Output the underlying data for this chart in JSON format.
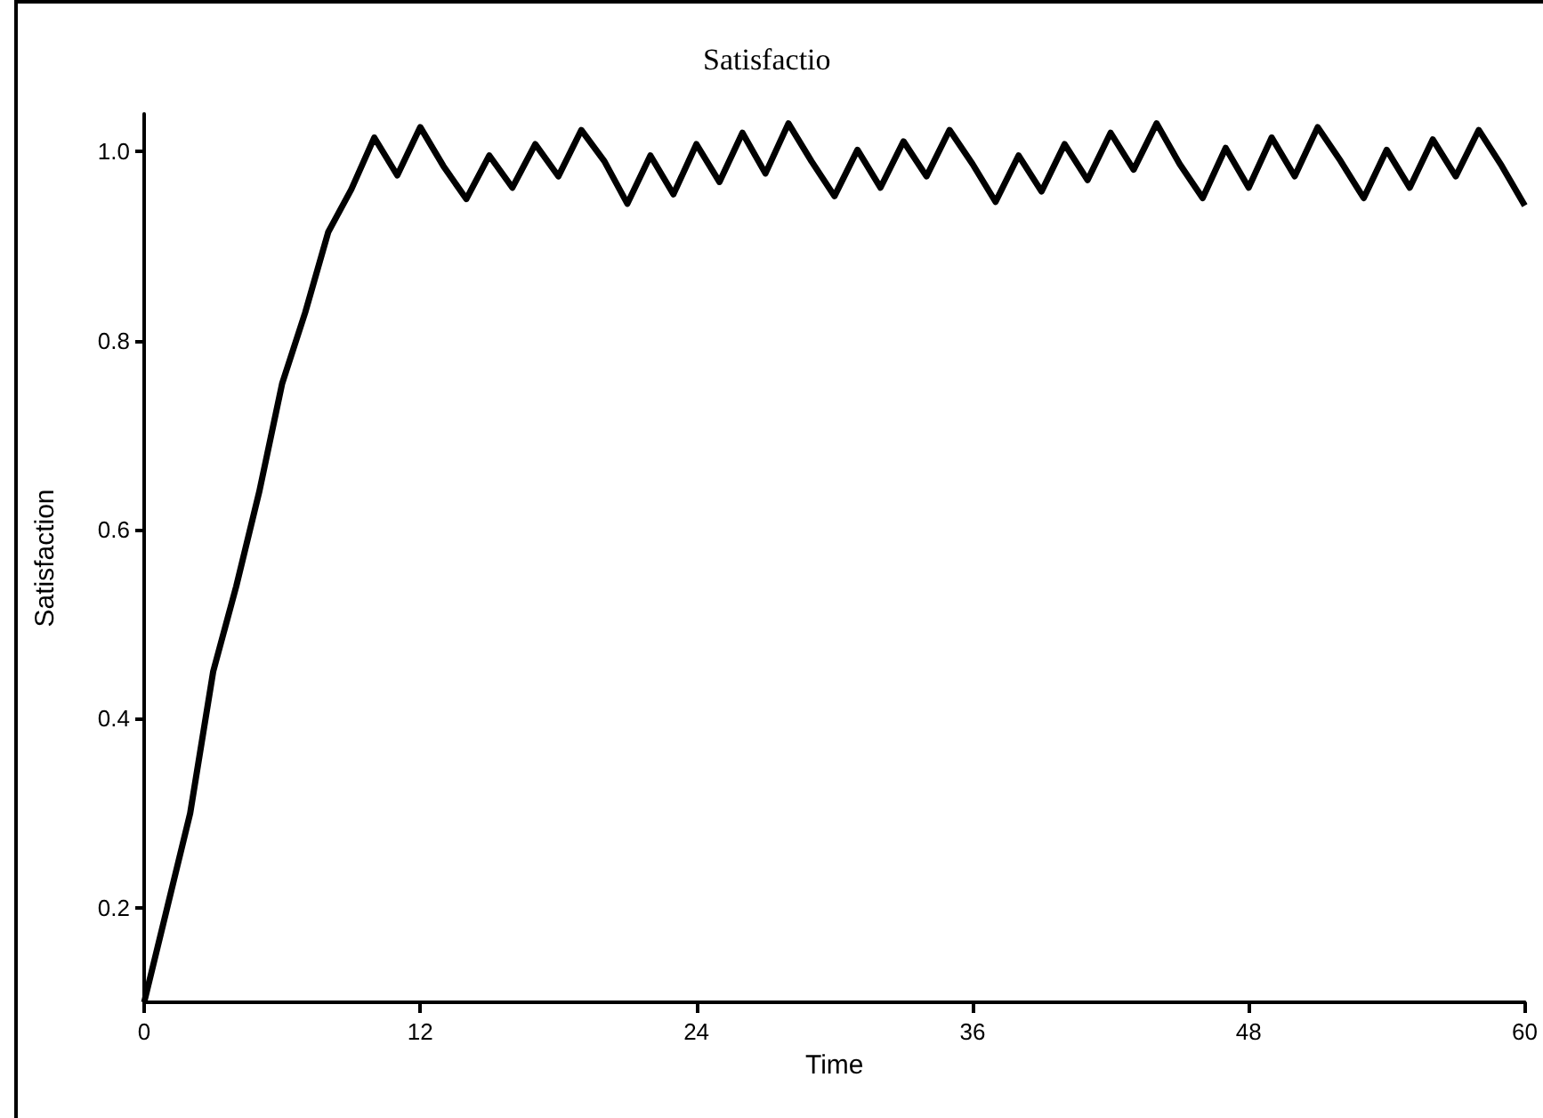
{
  "chart_data": {
    "type": "line",
    "title": "Satisfactio",
    "xlabel": "Time",
    "ylabel": "Satisfaction",
    "x": [
      0,
      1,
      2,
      3,
      4,
      5,
      6,
      7,
      8,
      9,
      10,
      11,
      12,
      13,
      14,
      15,
      16,
      17,
      18,
      19,
      20,
      21,
      22,
      23,
      24,
      25,
      26,
      27,
      28,
      29,
      30,
      31,
      32,
      33,
      34,
      35,
      36,
      37,
      38,
      39,
      40,
      41,
      42,
      43,
      44,
      45,
      46,
      47,
      48,
      49,
      50,
      51,
      52,
      53,
      54,
      55,
      56,
      57,
      58,
      59,
      60
    ],
    "series": [
      {
        "color": "#000000",
        "values": [
          0.1,
          0.2,
          0.3,
          0.45,
          0.54,
          0.64,
          0.755,
          0.83,
          0.915,
          0.96,
          1.015,
          0.975,
          1.026,
          0.985,
          0.95,
          0.996,
          0.962,
          1.008,
          0.974,
          1.023,
          0.99,
          0.945,
          0.996,
          0.955,
          1.008,
          0.968,
          1.02,
          0.977,
          1.03,
          0.99,
          0.953,
          1.002,
          0.962,
          1.011,
          0.974,
          1.023,
          0.987,
          0.947,
          0.996,
          0.958,
          1.008,
          0.97,
          1.02,
          0.981,
          1.03,
          0.987,
          0.951,
          1.004,
          0.962,
          1.015,
          0.974,
          1.026,
          0.99,
          0.951,
          1.002,
          0.962,
          1.013,
          0.974,
          1.023,
          0.985,
          0.943
        ]
      }
    ],
    "xlim": [
      0,
      60
    ],
    "xticks": [
      0,
      12,
      24,
      36,
      48,
      60
    ],
    "ylim": [
      0.1,
      1.04
    ],
    "yticks": [
      {
        "value": 0.2,
        "label": "0.2"
      },
      {
        "value": 0.4,
        "label": "0.4"
      },
      {
        "value": 0.6,
        "label": "0.6"
      },
      {
        "value": 0.8,
        "label": "0.8"
      },
      {
        "value": 1.0,
        "label": "1.0"
      }
    ],
    "grid": false,
    "marker": "none",
    "line_style": "solid"
  }
}
